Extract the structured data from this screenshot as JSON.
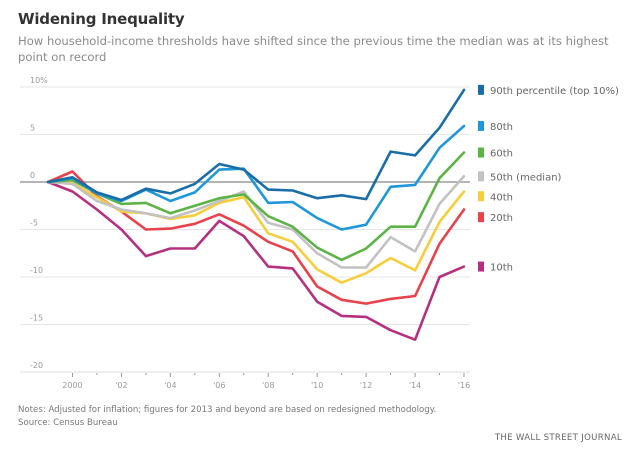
{
  "header": {
    "title": "Widening Inequality",
    "subtitle": "How household-income thresholds have shifted since the previous time the median was at its highest point on record"
  },
  "footer": {
    "notes": "Notes: Adjusted for inflation; figures for 2013 and beyond are based on redesigned methodology.",
    "source": "Source: Census Bureau",
    "brand": "THE WALL STREET JOURNAL"
  },
  "chart_data": {
    "type": "line",
    "title": "Widening Inequality",
    "subtitle": "How household-income thresholds have shifted since the previous time the median was at its highest point on record",
    "xlabel": "",
    "ylabel": "",
    "x": [
      1999,
      2000,
      2001,
      2002,
      2003,
      2004,
      2005,
      2006,
      2007,
      2008,
      2009,
      2010,
      2011,
      2012,
      2013,
      2014,
      2015,
      2016
    ],
    "xlim": [
      1999,
      2016
    ],
    "ylim": [
      -20,
      10
    ],
    "y_ticks": [
      {
        "value": 10,
        "label": "10%"
      },
      {
        "value": 5,
        "label": "5"
      },
      {
        "value": 0,
        "label": "0"
      },
      {
        "value": -5,
        "label": "-5"
      },
      {
        "value": -10,
        "label": "-10"
      },
      {
        "value": -15,
        "label": "-15"
      },
      {
        "value": -20,
        "label": "-20"
      }
    ],
    "x_ticks": [
      {
        "value": 2000,
        "label": "2000"
      },
      {
        "value": 2001,
        "label": ""
      },
      {
        "value": 2002,
        "label": "'02"
      },
      {
        "value": 2003,
        "label": ""
      },
      {
        "value": 2004,
        "label": "'04"
      },
      {
        "value": 2005,
        "label": ""
      },
      {
        "value": 2006,
        "label": "'06"
      },
      {
        "value": 2007,
        "label": ""
      },
      {
        "value": 2008,
        "label": "'08"
      },
      {
        "value": 2009,
        "label": ""
      },
      {
        "value": 2010,
        "label": "'10"
      },
      {
        "value": 2011,
        "label": ""
      },
      {
        "value": 2012,
        "label": "'12"
      },
      {
        "value": 2013,
        "label": ""
      },
      {
        "value": 2014,
        "label": "'14"
      },
      {
        "value": 2015,
        "label": ""
      },
      {
        "value": 2016,
        "label": "'16"
      }
    ],
    "grid": true,
    "legend_position": "right",
    "series": [
      {
        "name": "90th percentile (top 10%)",
        "color": "#1a6ea8",
        "legend_value": 9.7,
        "values": [
          0,
          0.5,
          -1.1,
          -1.9,
          -0.7,
          -1.2,
          -0.2,
          1.9,
          1.3,
          -0.8,
          -0.9,
          -1.7,
          -1.4,
          -1.8,
          3.2,
          2.8,
          5.7,
          9.7
        ]
      },
      {
        "name": "80th",
        "color": "#1f97d9",
        "legend_value": 5.9,
        "values": [
          0,
          0.4,
          -1.2,
          -2.0,
          -0.8,
          -2.0,
          -1.1,
          1.3,
          1.4,
          -2.2,
          -2.1,
          -3.8,
          -5.0,
          -4.5,
          -0.5,
          -0.3,
          3.6,
          5.9
        ]
      },
      {
        "name": "60th",
        "color": "#5cb346",
        "legend_value": 3.1,
        "values": [
          0,
          0.2,
          -1.2,
          -2.3,
          -2.2,
          -3.3,
          -2.5,
          -1.7,
          -1.3,
          -3.6,
          -4.7,
          -6.9,
          -8.2,
          -7.0,
          -4.7,
          -4.7,
          0.4,
          3.1
        ]
      },
      {
        "name": "50th (median)",
        "color": "#c2c2c2",
        "legend_value": 0.6,
        "values": [
          0,
          -0.2,
          -2.0,
          -2.9,
          -3.3,
          -3.8,
          -3.0,
          -2.0,
          -1.0,
          -4.3,
          -5.0,
          -7.5,
          -9.0,
          -9.0,
          -5.8,
          -7.3,
          -2.3,
          0.6
        ]
      },
      {
        "name": "40th",
        "color": "#f7ce3a",
        "legend_value": -1.0,
        "values": [
          0,
          -0.1,
          -1.6,
          -3.1,
          -3.3,
          -3.9,
          -3.5,
          -2.2,
          -1.6,
          -5.4,
          -6.3,
          -9.2,
          -10.6,
          -9.6,
          -8.0,
          -9.3,
          -4.2,
          -1.0
        ]
      },
      {
        "name": "20th",
        "color": "#e8424c",
        "legend_value": -2.9,
        "values": [
          0,
          1.1,
          -1.5,
          -3.1,
          -5.0,
          -4.9,
          -4.4,
          -3.4,
          -4.6,
          -6.3,
          -7.3,
          -11.0,
          -12.4,
          -12.8,
          -12.3,
          -12.0,
          -6.5,
          -2.9
        ]
      },
      {
        "name": "10th",
        "color": "#b5317f",
        "legend_value": -8.9,
        "values": [
          0,
          -1.0,
          -2.9,
          -5.0,
          -7.8,
          -7.0,
          -7.0,
          -4.1,
          -5.7,
          -8.9,
          -9.1,
          -12.6,
          -14.1,
          -14.2,
          -15.6,
          -16.6,
          -10.0,
          -8.9
        ]
      }
    ],
    "legend_label_offsets": [
      {
        "name": "90th percentile (top 10%)",
        "value": 9.7
      },
      {
        "name": "80th",
        "value": 5.9
      },
      {
        "name": "60th",
        "value": 3.1
      },
      {
        "name": "50th (median)",
        "value": 0.6
      },
      {
        "name": "40th",
        "value": -1.5
      },
      {
        "name": "20th",
        "value": -3.7
      },
      {
        "name": "10th",
        "value": -8.9
      }
    ],
    "zero_line_color": "#888888",
    "grid_color": "#e6e6e6"
  }
}
